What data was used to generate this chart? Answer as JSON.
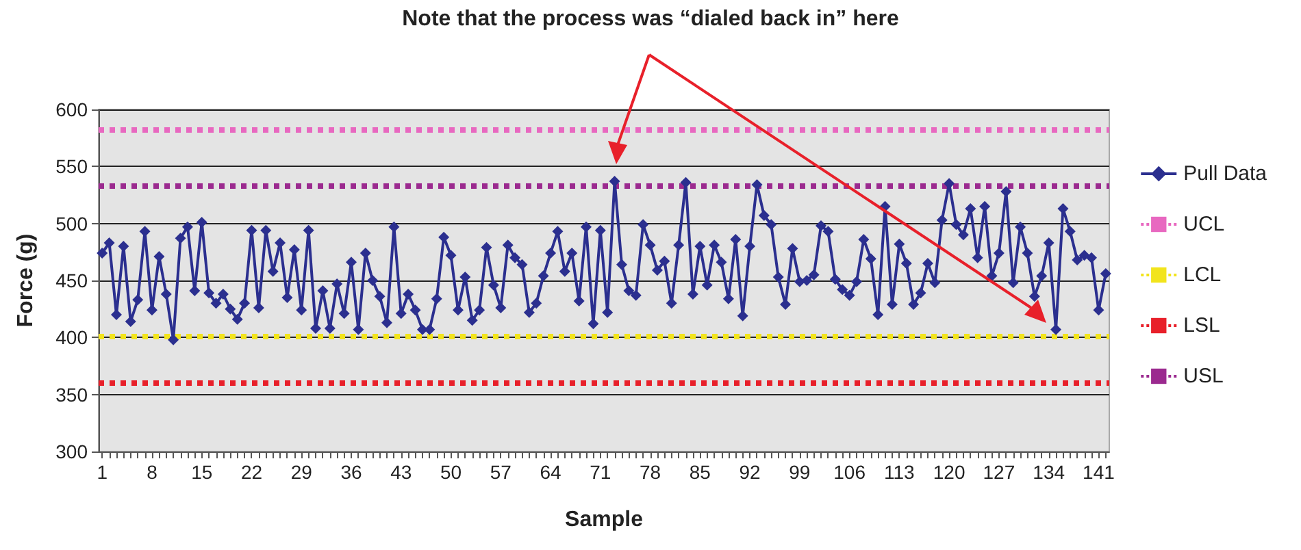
{
  "chart_data": {
    "type": "line",
    "annotations": [
      "Note that the process was “dialed back in” here"
    ],
    "xlabel": "Sample",
    "ylabel": "Force (g)",
    "categories": [
      "1",
      null,
      null,
      null,
      null,
      null,
      null,
      "8",
      null,
      null,
      null,
      null,
      null,
      null,
      "15",
      null,
      null,
      null,
      null,
      null,
      null,
      "22",
      null,
      null,
      null,
      null,
      null,
      null,
      "29",
      null,
      null,
      null,
      null,
      null,
      null,
      "36",
      null,
      null,
      null,
      null,
      null,
      null,
      "43",
      null,
      null,
      null,
      null,
      null,
      null,
      "50",
      null,
      null,
      null,
      null,
      null,
      null,
      "57",
      null,
      null,
      null,
      null,
      null,
      null,
      "64",
      null,
      null,
      null,
      null,
      null,
      null,
      "71",
      null,
      null,
      null,
      null,
      null,
      null,
      "78",
      null,
      null,
      null,
      null,
      null,
      null,
      "85",
      null,
      null,
      null,
      null,
      null,
      null,
      "92",
      null,
      null,
      null,
      null,
      null,
      null,
      "99",
      null,
      null,
      null,
      null,
      null,
      null,
      "106",
      null,
      null,
      null,
      null,
      null,
      null,
      "113",
      null,
      null,
      null,
      null,
      null,
      null,
      "120",
      null,
      null,
      null,
      null,
      null,
      null,
      "127",
      null,
      null,
      null,
      null,
      null,
      null,
      "134",
      null,
      null,
      null,
      null,
      null,
      null,
      "141",
      null
    ],
    "series": [
      {
        "name": "Pull Data",
        "color": "#2b2f8f",
        "values": [
          474,
          483,
          420,
          480,
          414,
          433,
          493,
          424,
          471,
          438,
          398,
          487,
          497,
          441,
          501,
          439,
          430,
          438,
          425,
          416,
          430,
          494,
          426,
          494,
          458,
          483,
          435,
          477,
          424,
          494,
          408,
          441,
          408,
          447,
          421,
          466,
          407,
          474,
          450,
          436,
          413,
          497,
          421,
          438,
          424,
          407,
          407,
          434,
          488,
          472,
          424,
          453,
          415,
          424,
          479,
          446,
          426,
          481,
          470,
          464,
          422,
          430,
          454,
          474,
          493,
          458,
          474,
          432,
          497,
          412,
          494,
          422,
          537,
          464,
          441,
          437,
          499,
          481,
          459,
          467,
          430,
          481,
          536,
          438,
          480,
          446,
          481,
          466,
          434,
          486,
          419,
          480,
          534,
          507,
          499,
          453,
          429,
          478,
          449,
          450,
          455,
          498,
          493,
          451,
          442,
          437,
          449,
          486,
          469,
          420,
          515,
          429,
          482,
          465,
          429,
          439,
          465,
          448,
          503,
          535,
          499,
          490,
          513,
          470,
          515,
          454,
          474,
          528,
          448,
          497,
          474,
          436,
          454,
          483,
          407,
          513,
          493,
          468,
          472,
          470,
          424,
          456
        ]
      }
    ],
    "ref_lines": [
      {
        "axis": "y",
        "value": 582,
        "label": "UCL",
        "color": "#e868c0",
        "line_style": "dotted"
      },
      {
        "axis": "y",
        "value": 401,
        "label": "LCL",
        "color": "#f2e41c",
        "line_style": "dotted"
      },
      {
        "axis": "y",
        "value": 360,
        "label": "LSL",
        "color": "#e8202a",
        "line_style": "dotted"
      },
      {
        "axis": "y",
        "value": 533,
        "label": "USL",
        "color": "#9b2a8f",
        "line_style": "dotted"
      }
    ],
    "ylim": [
      300,
      600
    ],
    "yticks": [
      300,
      350,
      400,
      450,
      500,
      550,
      600
    ],
    "grid": "y",
    "legend": "right",
    "marker": "diamond",
    "line_style": "solid"
  }
}
